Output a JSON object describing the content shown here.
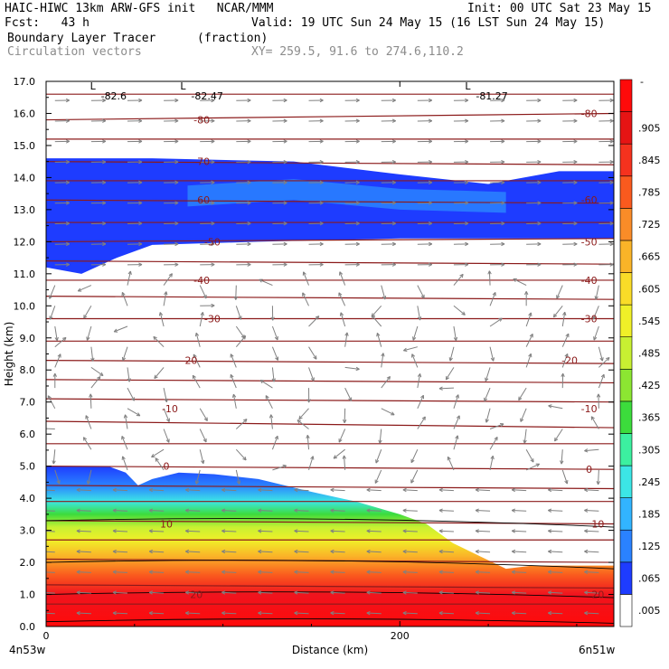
{
  "header": {
    "model_line": "HAIC-HIWC 13km ARW-GFS init   NCAR/MMM",
    "init_line": "Init: 00 UTC Sat 23 May 15",
    "fcst_line": "Fcst:   43 h",
    "valid_line": "Valid: 19 UTC Sun 24 May 15 (16 LST Sun 24 May 15)",
    "field_name": "Boundary Layer Tracer",
    "field_units": "(fraction)",
    "vector_label": "Circulation vectors",
    "xy_label": "XY= 259.5, 91.6 to 274.6,110.2"
  },
  "colors": {
    "temp_contour": "#8b1a1a",
    "theta_contour": "#000000",
    "vector": "#808080",
    "frame": "#000000"
  },
  "chart_data": {
    "type": "heatmap",
    "title": "Boundary Layer Tracer",
    "xlabel": "Distance (km)",
    "ylabel": "Height (km)",
    "xlim": [
      0,
      321
    ],
    "ylim": [
      0,
      17
    ],
    "x_ticks": [
      0,
      200
    ],
    "x_tick_labels": [
      "0",
      "200"
    ],
    "x_end_labels": [
      "4n53w",
      "6n51w"
    ],
    "y_ticks": [
      0,
      1,
      2,
      3,
      4,
      5,
      6,
      7,
      8,
      9,
      10,
      11,
      12,
      13,
      14,
      15,
      16,
      17
    ],
    "y_tick_labels": [
      "0.0",
      "1.0",
      "2.0",
      "3.0",
      "4.0",
      "5.0",
      "6.0",
      "7.0",
      "8.0",
      "9.0",
      "10.0",
      "11.0",
      "12.0",
      "13.0",
      "14.0",
      "15.0",
      "16.0",
      "17.0"
    ],
    "colorbar": {
      "levels": [
        ".005",
        ".065",
        ".125",
        ".185",
        ".245",
        ".305",
        ".365",
        ".425",
        ".485",
        ".545",
        ".605",
        ".665",
        ".725",
        ".785",
        ".845",
        ".905"
      ],
      "colors": [
        "#ffffff",
        "#1e3cff",
        "#2a82ff",
        "#32b4ff",
        "#3ce6e6",
        "#3cf0a0",
        "#3cdc3c",
        "#8ce632",
        "#c8f032",
        "#f0f028",
        "#fadc28",
        "#fab428",
        "#fa8c28",
        "#fa5a1e",
        "#f5321e",
        "#e61414",
        "#ff0a0a"
      ],
      "top_label": "-"
    },
    "bl_tracer": {
      "top_height_km": [
        [
          0,
          5.0
        ],
        [
          20,
          5.0
        ],
        [
          35,
          5.0
        ],
        [
          45,
          4.8
        ],
        [
          52,
          4.4
        ],
        [
          60,
          4.6
        ],
        [
          75,
          4.8
        ],
        [
          95,
          4.75
        ],
        [
          120,
          4.6
        ],
        [
          150,
          4.2
        ],
        [
          175,
          3.9
        ],
        [
          200,
          3.5
        ],
        [
          215,
          3.2
        ],
        [
          230,
          2.6
        ],
        [
          245,
          2.2
        ],
        [
          260,
          1.8
        ],
        [
          275,
          1.9
        ],
        [
          290,
          1.9
        ],
        [
          321,
          1.9
        ]
      ]
    },
    "upper_tracer": {
      "bottom_height_km": [
        [
          0,
          11.2
        ],
        [
          20,
          11.0
        ],
        [
          40,
          11.5
        ],
        [
          60,
          11.9
        ],
        [
          120,
          12.0
        ],
        [
          200,
          12.1
        ],
        [
          260,
          12.1
        ],
        [
          321,
          12.1
        ]
      ],
      "top_height_km": [
        [
          0,
          14.6
        ],
        [
          60,
          14.6
        ],
        [
          140,
          14.5
        ],
        [
          200,
          14.1
        ],
        [
          250,
          13.8
        ],
        [
          290,
          14.2
        ],
        [
          321,
          14.2
        ]
      ],
      "core_height_km": [
        [
          80,
          13.4
        ],
        [
          140,
          13.6
        ],
        [
          200,
          13.3
        ],
        [
          260,
          13.2
        ]
      ]
    },
    "temperature_contours": {
      "levels": [
        -80,
        -70,
        -60,
        -50,
        -40,
        -30,
        -20,
        -10,
        0,
        10,
        20
      ],
      "labels": [
        {
          "text": "-80",
          "x": 88,
          "y": 15.8
        },
        {
          "text": "-80",
          "x": 307,
          "y": 16.0
        },
        {
          "text": "-70",
          "x": 88,
          "y": 14.5
        },
        {
          "text": "-60",
          "x": 88,
          "y": 13.3
        },
        {
          "text": "-60",
          "x": 307,
          "y": 13.3
        },
        {
          "text": "-50",
          "x": 94,
          "y": 12.0
        },
        {
          "text": "-50",
          "x": 307,
          "y": 12.0
        },
        {
          "text": "-40",
          "x": 88,
          "y": 10.8
        },
        {
          "text": "-40",
          "x": 307,
          "y": 10.8
        },
        {
          "text": "-30",
          "x": 94,
          "y": 9.6
        },
        {
          "text": "-30",
          "x": 307,
          "y": 9.6
        },
        {
          "text": "-20",
          "x": 81,
          "y": 8.3
        },
        {
          "text": "-20",
          "x": 296,
          "y": 8.3
        },
        {
          "text": "-10",
          "x": 70,
          "y": 6.8
        },
        {
          "text": "-10",
          "x": 307,
          "y": 6.8
        },
        {
          "text": "0",
          "x": 68,
          "y": 5.0
        },
        {
          "text": "0",
          "x": 307,
          "y": 4.9
        },
        {
          "text": "10",
          "x": 68,
          "y": 3.2
        },
        {
          "text": "10",
          "x": 312,
          "y": 3.2
        },
        {
          "text": "20",
          "x": 85,
          "y": 1.0
        },
        {
          "text": "20",
          "x": 312,
          "y": 1.0
        }
      ]
    },
    "lows": [
      {
        "text": "L",
        "value": "-82.6",
        "x": 32,
        "y": 16.8
      },
      {
        "text": "L",
        "value": "-82.47",
        "x": 83,
        "y": 16.8
      },
      {
        "text": "L",
        "value": "-81.27",
        "x": 244,
        "y": 16.8
      }
    ]
  }
}
